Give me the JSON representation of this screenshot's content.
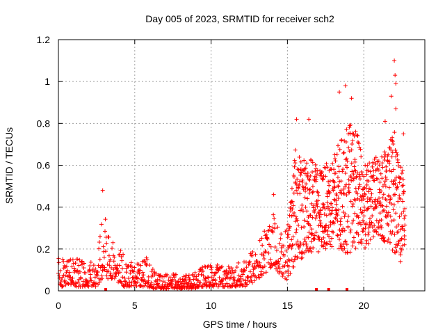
{
  "chart_data": {
    "type": "scatter",
    "title": "Day 005 of 2023, SRMTID for receiver sch2",
    "xlabel": "GPS time / hours",
    "ylabel": "SRMTID / TECUs",
    "xlim": [
      0,
      24
    ],
    "ylim": [
      0,
      1.2
    ],
    "xticks": [
      0,
      5,
      10,
      15,
      20
    ],
    "xtick_labels": [
      "0",
      "5",
      "10",
      "15",
      "20"
    ],
    "yticks": [
      0,
      0.2,
      0.4,
      0.6,
      0.8,
      1,
      1.2
    ],
    "ytick_labels": [
      "0",
      "0.2",
      "0.4",
      "0.6",
      "0.8",
      "1",
      "1.2"
    ],
    "grid": true,
    "marker": "+",
    "series_color": "#ff0000",
    "baseline_markers_x": [
      3.1,
      16.9,
      17.7,
      18.9
    ],
    "envelope": [
      [
        0.0,
        0.02,
        0.18
      ],
      [
        0.5,
        0.02,
        0.17
      ],
      [
        1.0,
        0.02,
        0.16
      ],
      [
        1.5,
        0.02,
        0.15
      ],
      [
        2.0,
        0.02,
        0.14
      ],
      [
        2.5,
        0.02,
        0.15
      ],
      [
        2.8,
        0.05,
        0.32
      ],
      [
        3.0,
        0.08,
        0.42
      ],
      [
        3.3,
        0.05,
        0.26
      ],
      [
        3.8,
        0.05,
        0.24
      ],
      [
        4.2,
        0.02,
        0.18
      ],
      [
        4.7,
        0.02,
        0.14
      ],
      [
        5.2,
        0.02,
        0.13
      ],
      [
        5.8,
        0.02,
        0.16
      ],
      [
        6.3,
        0.01,
        0.09
      ],
      [
        7.0,
        0.01,
        0.08
      ],
      [
        8.0,
        0.01,
        0.08
      ],
      [
        8.8,
        0.01,
        0.08
      ],
      [
        9.5,
        0.02,
        0.12
      ],
      [
        10.3,
        0.02,
        0.13
      ],
      [
        11.0,
        0.02,
        0.12
      ],
      [
        11.6,
        0.02,
        0.12
      ],
      [
        12.3,
        0.02,
        0.18
      ],
      [
        13.0,
        0.05,
        0.22
      ],
      [
        13.5,
        0.08,
        0.3
      ],
      [
        14.0,
        0.12,
        0.4
      ],
      [
        14.5,
        0.08,
        0.28
      ],
      [
        15.0,
        0.05,
        0.32
      ],
      [
        15.5,
        0.12,
        0.7
      ],
      [
        16.0,
        0.15,
        0.62
      ],
      [
        16.5,
        0.18,
        0.66
      ],
      [
        17.0,
        0.18,
        0.58
      ],
      [
        17.5,
        0.2,
        0.6
      ],
      [
        18.0,
        0.2,
        0.66
      ],
      [
        18.5,
        0.18,
        0.72
      ],
      [
        19.0,
        0.18,
        0.8
      ],
      [
        19.5,
        0.2,
        0.78
      ],
      [
        20.0,
        0.2,
        0.6
      ],
      [
        20.5,
        0.22,
        0.62
      ],
      [
        21.0,
        0.25,
        0.66
      ],
      [
        21.5,
        0.22,
        0.7
      ],
      [
        22.0,
        0.18,
        0.78
      ],
      [
        22.5,
        0.15,
        0.6
      ],
      [
        22.7,
        0.18,
        0.52
      ]
    ],
    "notable_points": [
      {
        "x": 2.9,
        "y": 0.48
      },
      {
        "x": 14.1,
        "y": 0.46
      },
      {
        "x": 15.6,
        "y": 0.82
      },
      {
        "x": 16.4,
        "y": 0.82
      },
      {
        "x": 18.4,
        "y": 0.95
      },
      {
        "x": 18.8,
        "y": 0.98
      },
      {
        "x": 19.2,
        "y": 0.92
      },
      {
        "x": 21.4,
        "y": 0.81
      },
      {
        "x": 21.8,
        "y": 0.93
      },
      {
        "x": 22.0,
        "y": 1.1
      },
      {
        "x": 22.05,
        "y": 1.03
      },
      {
        "x": 22.1,
        "y": 0.99
      },
      {
        "x": 22.1,
        "y": 0.87
      },
      {
        "x": 22.6,
        "y": 0.75
      },
      {
        "x": 22.4,
        "y": 0.14
      }
    ],
    "sample_step_hours": 0.02,
    "noise_seed": 5
  }
}
